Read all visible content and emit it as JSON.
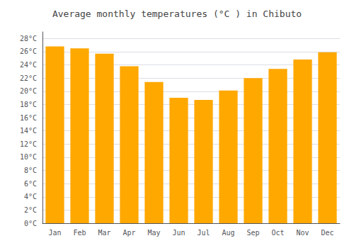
{
  "chart_data": {
    "type": "bar",
    "title": "Average monthly temperatures (°C ) in Chibuto",
    "categories": [
      "Jan",
      "Feb",
      "Mar",
      "Apr",
      "May",
      "Jun",
      "Jul",
      "Aug",
      "Sep",
      "Oct",
      "Nov",
      "Dec"
    ],
    "values": [
      26.8,
      26.5,
      25.7,
      23.8,
      21.4,
      19.0,
      18.7,
      20.1,
      22.0,
      23.4,
      24.8,
      25.9
    ],
    "color": "#FFA800",
    "ylim": [
      0,
      29
    ],
    "yticks": [
      {
        "value": 0,
        "label": "0°C"
      },
      {
        "value": 2,
        "label": "2°C"
      },
      {
        "value": 4,
        "label": "4°C"
      },
      {
        "value": 6,
        "label": "6°C"
      },
      {
        "value": 8,
        "label": "8°C"
      },
      {
        "value": 10,
        "label": "10°C"
      },
      {
        "value": 12,
        "label": "12°C"
      },
      {
        "value": 14,
        "label": "14°C"
      },
      {
        "value": 16,
        "label": "16°C"
      },
      {
        "value": 18,
        "label": "18°C"
      },
      {
        "value": 20,
        "label": "20°C"
      },
      {
        "value": 22,
        "label": "22°C"
      },
      {
        "value": 24,
        "label": "24°C"
      },
      {
        "value": 26,
        "label": "26°C"
      },
      {
        "value": 28,
        "label": "28°C"
      }
    ],
    "grid": true
  }
}
